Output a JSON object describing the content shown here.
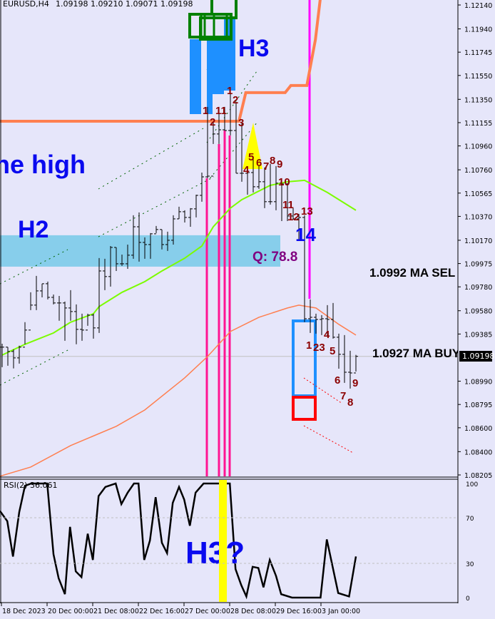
{
  "header": {
    "symbol": "EURUSD,H4",
    "ohlc_text": "1.09198 1.09210 1.09071 1.09198"
  },
  "price_axis": {
    "ticks": [
      "1.12140",
      "1.11940",
      "1.11745",
      "1.11550",
      "1.11350",
      "1.11155",
      "1.10960",
      "1.10760",
      "1.10565",
      "1.10370",
      "1.10170",
      "1.09975",
      "1.09780",
      "1.09580",
      "1.09385",
      "1.08990",
      "1.08795",
      "1.08600",
      "1.08400",
      "1.08205"
    ],
    "current_price": "1.09198"
  },
  "time_axis": {
    "labels": [
      "18 Dec 2023",
      "20 Dec 00:00",
      "21 Dec 08:00",
      "22 Dec 16:00",
      "27 Dec 00:00",
      "28 Dec 08:00",
      "29 Dec 16:00",
      "3 Jan 00:00"
    ]
  },
  "annotations": {
    "the_high": "he high",
    "h2": "H2",
    "h3": "H3",
    "h3q": "H3?",
    "q": "Q: 78.8",
    "fourteen": "14",
    "ma_sell": "1.0992 MA SEL",
    "ma_buy": "1.0927 MA BUY",
    "counts": [
      "1",
      "2",
      "11",
      "1",
      "2",
      "3",
      "4",
      "5",
      "6",
      "7",
      "8",
      "9",
      "10",
      "11",
      "12",
      "13",
      "1",
      "23",
      "4",
      "5",
      "6",
      "7",
      "8",
      "9"
    ]
  },
  "rsi_panel": {
    "label": "RSI(2) 36.061",
    "levels": [
      "100",
      "70",
      "30",
      "0"
    ]
  },
  "colors": {
    "background": "#e6e6fa",
    "bars": "#000000",
    "ma_fast": "#7cfc00",
    "ma_slow": "#ff7f50",
    "h2_zone": "#87ceeb",
    "count_labels": "#8b0000",
    "vertical_pink": "#ff1493",
    "vertical_magenta": "#ff00ff",
    "rsi_highlight": "#ffff00"
  },
  "chart_data": [
    {
      "type": "ohlc",
      "title": "EURUSD,H4",
      "x_labels": [
        "18 Dec 2023",
        "20 Dec 00:00",
        "21 Dec 08:00",
        "22 Dec 16:00",
        "27 Dec 00:00",
        "28 Dec 08:00",
        "29 Dec 16:00",
        "3 Jan 00:00"
      ],
      "ylim": [
        1.08205,
        1.1214
      ],
      "bars_hlc": [
        [
          1.09304,
          1.09107,
          1.09275
        ],
        [
          1.09275,
          1.09119,
          1.09239
        ],
        [
          1.09257,
          1.09097,
          1.09185
        ],
        [
          1.09287,
          1.09137,
          1.09275
        ],
        [
          1.09484,
          1.09299,
          1.09418
        ],
        [
          1.09734,
          1.09585,
          1.09627
        ],
        [
          1.09872,
          1.09585,
          1.09746
        ],
        [
          1.09806,
          1.09692,
          1.09806
        ],
        [
          1.09824,
          1.09675,
          1.09692
        ],
        [
          1.09716,
          1.09633,
          1.09645
        ],
        [
          1.09704,
          1.09496,
          1.09645
        ],
        [
          1.09657,
          1.09328,
          1.09603
        ],
        [
          1.09752,
          1.09496,
          1.09573
        ],
        [
          1.09633,
          1.09299,
          1.09424
        ],
        [
          1.09555,
          1.09328,
          1.09418
        ],
        [
          1.09555,
          1.09454,
          1.09543
        ],
        [
          1.09555,
          1.09346,
          1.09436
        ],
        [
          1.10021,
          1.09394,
          1.09913
        ],
        [
          1.10015,
          1.09752,
          1.09866
        ],
        [
          1.10122,
          1.09782,
          1.1011
        ],
        [
          1.1011,
          1.09913,
          1.09973
        ],
        [
          1.1005,
          1.09955,
          1.09973
        ],
        [
          1.10134,
          1.09931,
          1.10045
        ],
        [
          1.10379,
          1.10015,
          1.10283
        ],
        [
          1.10403,
          1.09991,
          1.10152
        ],
        [
          1.10194,
          1.10015,
          1.10134
        ],
        [
          1.1023,
          1.10015,
          1.10224
        ],
        [
          1.1029,
          1.1023,
          1.1026
        ],
        [
          1.1026,
          1.10093,
          1.10134
        ],
        [
          1.10242,
          1.10081,
          1.1017
        ],
        [
          1.10379,
          1.10134,
          1.10349
        ],
        [
          1.10451,
          1.10349,
          1.10409
        ],
        [
          1.10421,
          1.10319,
          1.10361
        ],
        [
          1.10439,
          1.10283,
          1.10433
        ],
        [
          1.10552,
          1.10361,
          1.10546
        ],
        [
          1.10737,
          1.10493,
          1.10701
        ],
        [
          1.11287,
          1.1069,
          1.10707
        ],
        [
          1.11167,
          1.10976,
          1.1106
        ],
        [
          1.11287,
          1.10976,
          1.11095
        ],
        [
          1.11287,
          1.11089,
          1.11089
        ],
        [
          1.11448,
          1.11048,
          1.11089
        ],
        [
          1.11328,
          1.10731,
          1.10731
        ],
        [
          1.11149,
          1.1066,
          1.10731
        ],
        [
          1.10767,
          1.10552,
          1.10737
        ],
        [
          1.10851,
          1.1057,
          1.10618
        ],
        [
          1.10791,
          1.106,
          1.1066
        ],
        [
          1.10779,
          1.10439,
          1.10493
        ],
        [
          1.10809,
          1.10469,
          1.10493
        ],
        [
          1.10791,
          1.10421,
          1.10648
        ],
        [
          1.1069,
          1.10331,
          1.10642
        ],
        [
          1.10648,
          1.10331,
          1.10373
        ],
        [
          1.10439,
          1.10343,
          1.10349
        ],
        [
          1.10391,
          1.1017,
          1.10361
        ],
        [
          1.10379,
          1.09484,
          1.09513
        ],
        [
          1.09675,
          1.09394,
          1.09525
        ],
        [
          1.09555,
          1.09388,
          1.09507
        ],
        [
          1.09543,
          1.09376,
          1.09513
        ],
        [
          1.09627,
          1.09364,
          1.09507
        ],
        [
          1.09645,
          1.09346,
          1.09358
        ],
        [
          1.09388,
          1.09095,
          1.09215
        ],
        [
          1.09376,
          1.08976,
          1.09065
        ],
        [
          1.09245,
          1.08928,
          1.09059
        ],
        [
          1.0921,
          1.09071,
          1.09198
        ]
      ],
      "ma_fast": [
        [
          0,
          1.09209
        ],
        [
          4,
          1.09299
        ],
        [
          9,
          1.09394
        ],
        [
          12,
          1.09484
        ],
        [
          16,
          1.09555
        ],
        [
          17,
          1.09615
        ],
        [
          21,
          1.09734
        ],
        [
          25,
          1.09824
        ],
        [
          28,
          1.09913
        ],
        [
          32,
          1.1002
        ],
        [
          35,
          1.10122
        ],
        [
          37,
          1.10283
        ],
        [
          40,
          1.10439
        ],
        [
          42,
          1.1051
        ],
        [
          47,
          1.1063
        ],
        [
          50,
          1.1066
        ],
        [
          53,
          1.10672
        ],
        [
          57,
          1.1057
        ],
        [
          62,
          1.10421
        ]
      ],
      "ma_slow": [
        [
          -0.4,
          1.08194
        ],
        [
          5,
          1.08271
        ],
        [
          12,
          1.08451
        ],
        [
          20,
          1.08612
        ],
        [
          25,
          1.08749
        ],
        [
          32,
          1.09018
        ],
        [
          36,
          1.09197
        ],
        [
          40,
          1.09406
        ],
        [
          45,
          1.09525
        ],
        [
          50,
          1.09603
        ],
        [
          52,
          1.09627
        ],
        [
          55,
          1.09603
        ],
        [
          59,
          1.09466
        ],
        [
          62,
          1.09376
        ]
      ],
      "upper_band": [
        [
          -0.4,
          1.11167
        ],
        [
          41.5,
          1.11167
        ],
        [
          42.7,
          1.11406
        ],
        [
          49.6,
          1.11406
        ],
        [
          50.6,
          1.11466
        ],
        [
          53.4,
          1.11466
        ],
        [
          54.9,
          1.1185
        ],
        [
          55.9,
          1.1225
        ]
      ],
      "h2_zone": [
        1.09949,
        1.10212
      ]
    },
    {
      "type": "line",
      "title": "RSI(2) 36.061",
      "ylim": [
        0,
        100
      ],
      "levels": [
        70,
        30
      ],
      "points": [
        [
          -0.4,
          76
        ],
        [
          0.9,
          67
        ],
        [
          1.9,
          36
        ],
        [
          3,
          75
        ],
        [
          4,
          98
        ],
        [
          5.1,
          100
        ],
        [
          7.9,
          100
        ],
        [
          9,
          38
        ],
        [
          9.9,
          17
        ],
        [
          11,
          3
        ],
        [
          11.9,
          62
        ],
        [
          12.9,
          23
        ],
        [
          13.9,
          18
        ],
        [
          15,
          56
        ],
        [
          15.9,
          33
        ],
        [
          16.9,
          89
        ],
        [
          18.1,
          97
        ],
        [
          19.9,
          100
        ],
        [
          20.9,
          82
        ],
        [
          22,
          92
        ],
        [
          23.1,
          100
        ],
        [
          23.9,
          100
        ],
        [
          24.9,
          33
        ],
        [
          25.9,
          50
        ],
        [
          26.9,
          88
        ],
        [
          28,
          48
        ],
        [
          28.9,
          39
        ],
        [
          29.9,
          83
        ],
        [
          31,
          97
        ],
        [
          31.9,
          86
        ],
        [
          32.9,
          63
        ],
        [
          33.9,
          92
        ],
        [
          35.3,
          100
        ],
        [
          36.6,
          100
        ],
        [
          39.9,
          100
        ],
        [
          40.9,
          25
        ],
        [
          41.9,
          11
        ],
        [
          42.8,
          1
        ],
        [
          43.9,
          27
        ],
        [
          44.9,
          26
        ],
        [
          45.8,
          9
        ],
        [
          46.9,
          33
        ],
        [
          48,
          19
        ],
        [
          48.9,
          3
        ],
        [
          50.8,
          0
        ],
        [
          55.8,
          0
        ],
        [
          56.9,
          51
        ],
        [
          58.9,
          4
        ],
        [
          60.8,
          1
        ],
        [
          62,
          36.061
        ]
      ]
    }
  ]
}
